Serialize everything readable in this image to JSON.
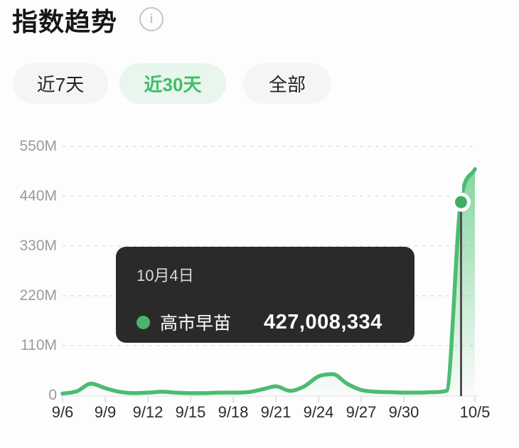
{
  "header": {
    "title": "指数趋势",
    "info_icon": "i"
  },
  "filters": [
    {
      "label": "近7天",
      "active": false
    },
    {
      "label": "近30天",
      "active": true
    },
    {
      "label": "全部",
      "active": false
    }
  ],
  "colors": {
    "accent_green": "#3fbd68",
    "active_pill_bg": "#e8f6ed",
    "line_green": "#4bbc72",
    "marker_green": "#3fae63",
    "tooltip_bg": "#2a2a2a",
    "tooltip_dot": "#4db36c",
    "crosshair_dark": "#515151",
    "gridline": "#e7e7e7"
  },
  "tooltip": {
    "date": "10月4日",
    "series_name": "高市早苗",
    "value": "427,008,334"
  },
  "chart_data": {
    "type": "line",
    "title": "指数趋势",
    "x": [
      "9/6",
      "9/7",
      "9/8",
      "9/9",
      "9/10",
      "9/11",
      "9/12",
      "9/13",
      "9/14",
      "9/15",
      "9/16",
      "9/17",
      "9/18",
      "9/19",
      "9/20",
      "9/21",
      "9/22",
      "9/23",
      "9/24",
      "9/25",
      "9/26",
      "9/27",
      "9/28",
      "9/29",
      "9/30",
      "10/1",
      "10/2",
      "10/3",
      "10/4",
      "10/5"
    ],
    "series": [
      {
        "name": "高市早苗",
        "color": "#4bbc72",
        "values": [
          4000000,
          9000000,
          26000000,
          16000000,
          8000000,
          5000000,
          6000000,
          8000000,
          6000000,
          5000000,
          5000000,
          6000000,
          6000000,
          7000000,
          13000000,
          20000000,
          10000000,
          20000000,
          42000000,
          47000000,
          26000000,
          12000000,
          8000000,
          7000000,
          6000000,
          6000000,
          7000000,
          10000000,
          427008334,
          500000000
        ]
      }
    ],
    "y_ticks": [
      {
        "label": "550M",
        "value": 550000000
      },
      {
        "label": "440M",
        "value": 440000000
      },
      {
        "label": "330M",
        "value": 330000000
      },
      {
        "label": "220M",
        "value": 220000000
      },
      {
        "label": "110M",
        "value": 110000000
      },
      {
        "label": "0",
        "value": 0
      }
    ],
    "x_tick_labels": [
      "9/6",
      "9/9",
      "9/12",
      "9/15",
      "9/18",
      "9/21",
      "9/24",
      "9/27",
      "9/30",
      "10/5"
    ],
    "x_tick_day_indices": [
      0,
      3,
      6,
      9,
      12,
      15,
      18,
      21,
      24,
      29
    ],
    "ylim": [
      0,
      550000000
    ],
    "grid": "dashed-horizontal",
    "legend": "none",
    "area_fill": true,
    "highlight": {
      "x": "10/4",
      "index": 28,
      "value": 427008334
    }
  }
}
